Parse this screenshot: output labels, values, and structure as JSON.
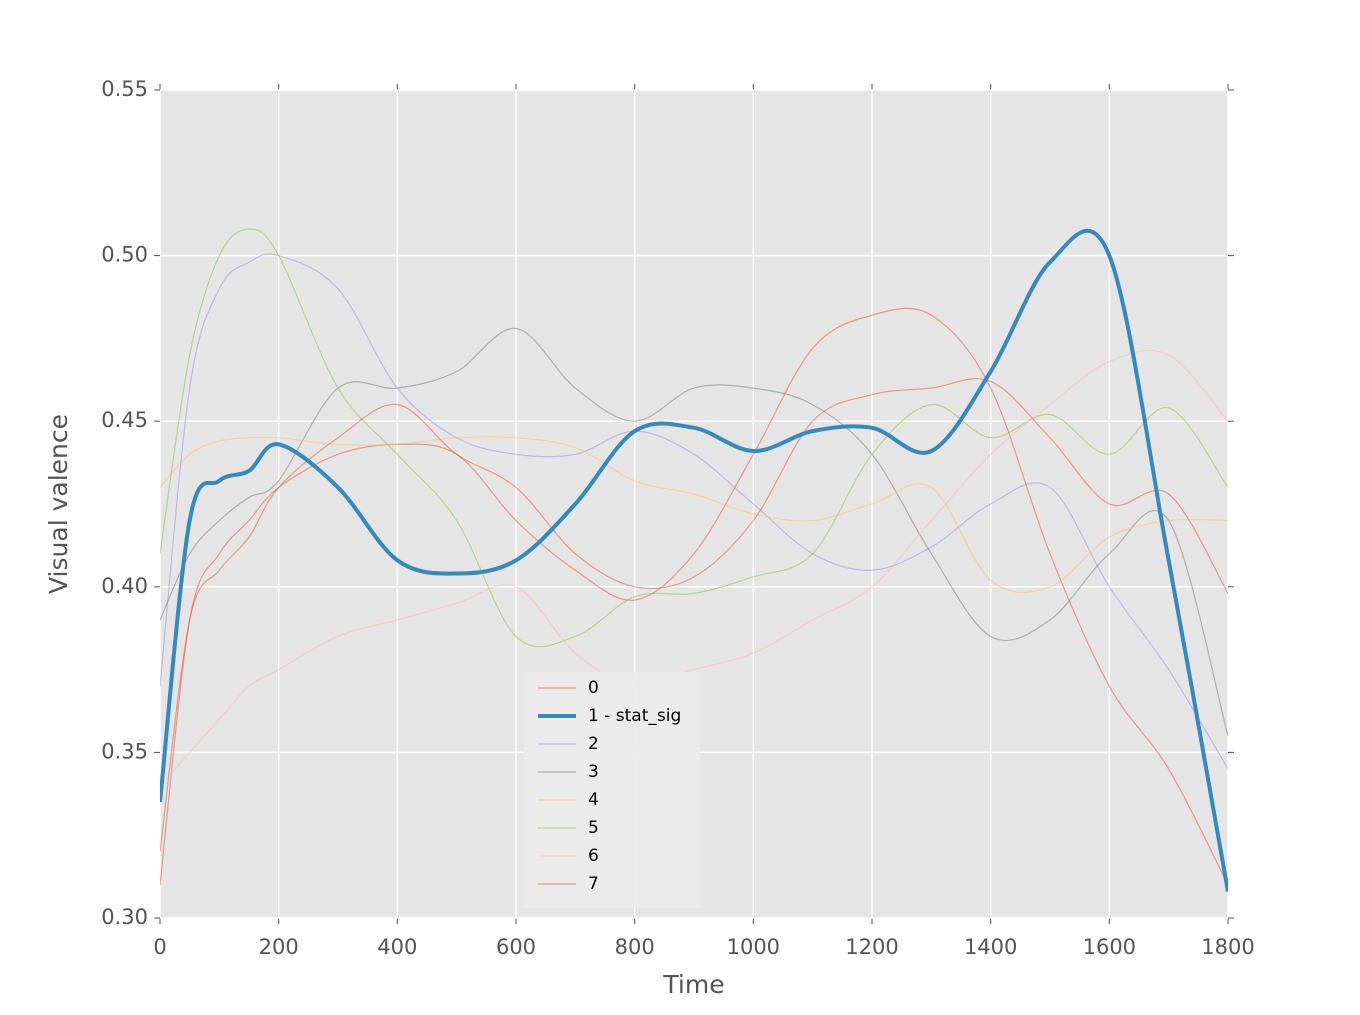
{
  "chart_data": {
    "type": "line",
    "xlabel": "Time",
    "ylabel": "Visual valence",
    "x": [
      0,
      50,
      100,
      150,
      200,
      300,
      400,
      500,
      600,
      700,
      800,
      900,
      1000,
      1100,
      1200,
      1300,
      1400,
      1500,
      1600,
      1700,
      1800
    ],
    "series": [
      {
        "name": "0",
        "color": "#E24A33",
        "linewidth": 1.2,
        "alpha": 0.5,
        "values": [
          0.31,
          0.39,
          0.41,
          0.42,
          0.43,
          0.44,
          0.443,
          0.44,
          0.42,
          0.405,
          0.396,
          0.41,
          0.44,
          0.472,
          0.482,
          0.482,
          0.46,
          0.41,
          0.37,
          0.345,
          0.31
        ]
      },
      {
        "name": "1 - stat_sig",
        "color": "#348ABD",
        "linewidth": 4,
        "alpha": 1,
        "values": [
          0.335,
          0.42,
          0.432,
          0.435,
          0.443,
          0.43,
          0.408,
          0.404,
          0.408,
          0.425,
          0.447,
          0.448,
          0.441,
          0.447,
          0.448,
          0.441,
          0.465,
          0.498,
          0.5,
          0.408,
          0.308
        ]
      },
      {
        "name": "2",
        "color": "#988ED5",
        "linewidth": 1.2,
        "alpha": 0.5,
        "values": [
          0.37,
          0.46,
          0.49,
          0.498,
          0.5,
          0.49,
          0.46,
          0.445,
          0.44,
          0.44,
          0.447,
          0.44,
          0.425,
          0.41,
          0.405,
          0.412,
          0.425,
          0.43,
          0.4,
          0.375,
          0.345
        ]
      },
      {
        "name": "3",
        "color": "#777777",
        "linewidth": 1.2,
        "alpha": 0.5,
        "values": [
          0.39,
          0.41,
          0.42,
          0.427,
          0.432,
          0.46,
          0.46,
          0.465,
          0.478,
          0.46,
          0.45,
          0.46,
          0.46,
          0.455,
          0.44,
          0.41,
          0.385,
          0.39,
          0.41,
          0.42,
          0.355
        ]
      },
      {
        "name": "4",
        "color": "#FBC15E",
        "linewidth": 1.2,
        "alpha": 0.5,
        "values": [
          0.43,
          0.44,
          0.444,
          0.445,
          0.445,
          0.443,
          0.443,
          0.445,
          0.445,
          0.442,
          0.432,
          0.428,
          0.422,
          0.42,
          0.425,
          0.43,
          0.402,
          0.4,
          0.415,
          0.42,
          0.42
        ]
      },
      {
        "name": "5",
        "color": "#8EBA42",
        "linewidth": 1.2,
        "alpha": 0.5,
        "values": [
          0.41,
          0.47,
          0.5,
          0.508,
          0.5,
          0.46,
          0.44,
          0.42,
          0.385,
          0.385,
          0.397,
          0.398,
          0.403,
          0.41,
          0.44,
          0.455,
          0.445,
          0.452,
          0.44,
          0.454,
          0.43
        ]
      },
      {
        "name": "6",
        "color": "#FFB5B8",
        "linewidth": 1.2,
        "alpha": 0.5,
        "values": [
          0.34,
          0.35,
          0.36,
          0.37,
          0.375,
          0.385,
          0.39,
          0.395,
          0.4,
          0.38,
          0.37,
          0.375,
          0.38,
          0.39,
          0.4,
          0.42,
          0.44,
          0.455,
          0.468,
          0.47,
          0.45
        ]
      },
      {
        "name": "7",
        "color": "#E24A33",
        "linewidth": 1.2,
        "alpha": 0.5,
        "values": [
          0.32,
          0.39,
          0.405,
          0.415,
          0.43,
          0.445,
          0.455,
          0.44,
          0.43,
          0.41,
          0.4,
          0.403,
          0.42,
          0.45,
          0.458,
          0.46,
          0.462,
          0.445,
          0.425,
          0.428,
          0.398
        ]
      }
    ],
    "xlim": [
      0,
      1800
    ],
    "xticks": [
      0,
      200,
      400,
      600,
      800,
      1000,
      1200,
      1400,
      1600,
      1800
    ],
    "ylim": [
      0.3,
      0.55
    ],
    "yticks": [
      {
        "value": 0.3,
        "label": "0.30"
      },
      {
        "value": 0.35,
        "label": "0.35"
      },
      {
        "value": 0.4,
        "label": "0.40"
      },
      {
        "value": 0.45,
        "label": "0.45"
      },
      {
        "value": 0.5,
        "label": "0.50"
      },
      {
        "value": 0.55,
        "label": "0.55"
      }
    ],
    "grid": true,
    "legend_loc": "lower center"
  }
}
